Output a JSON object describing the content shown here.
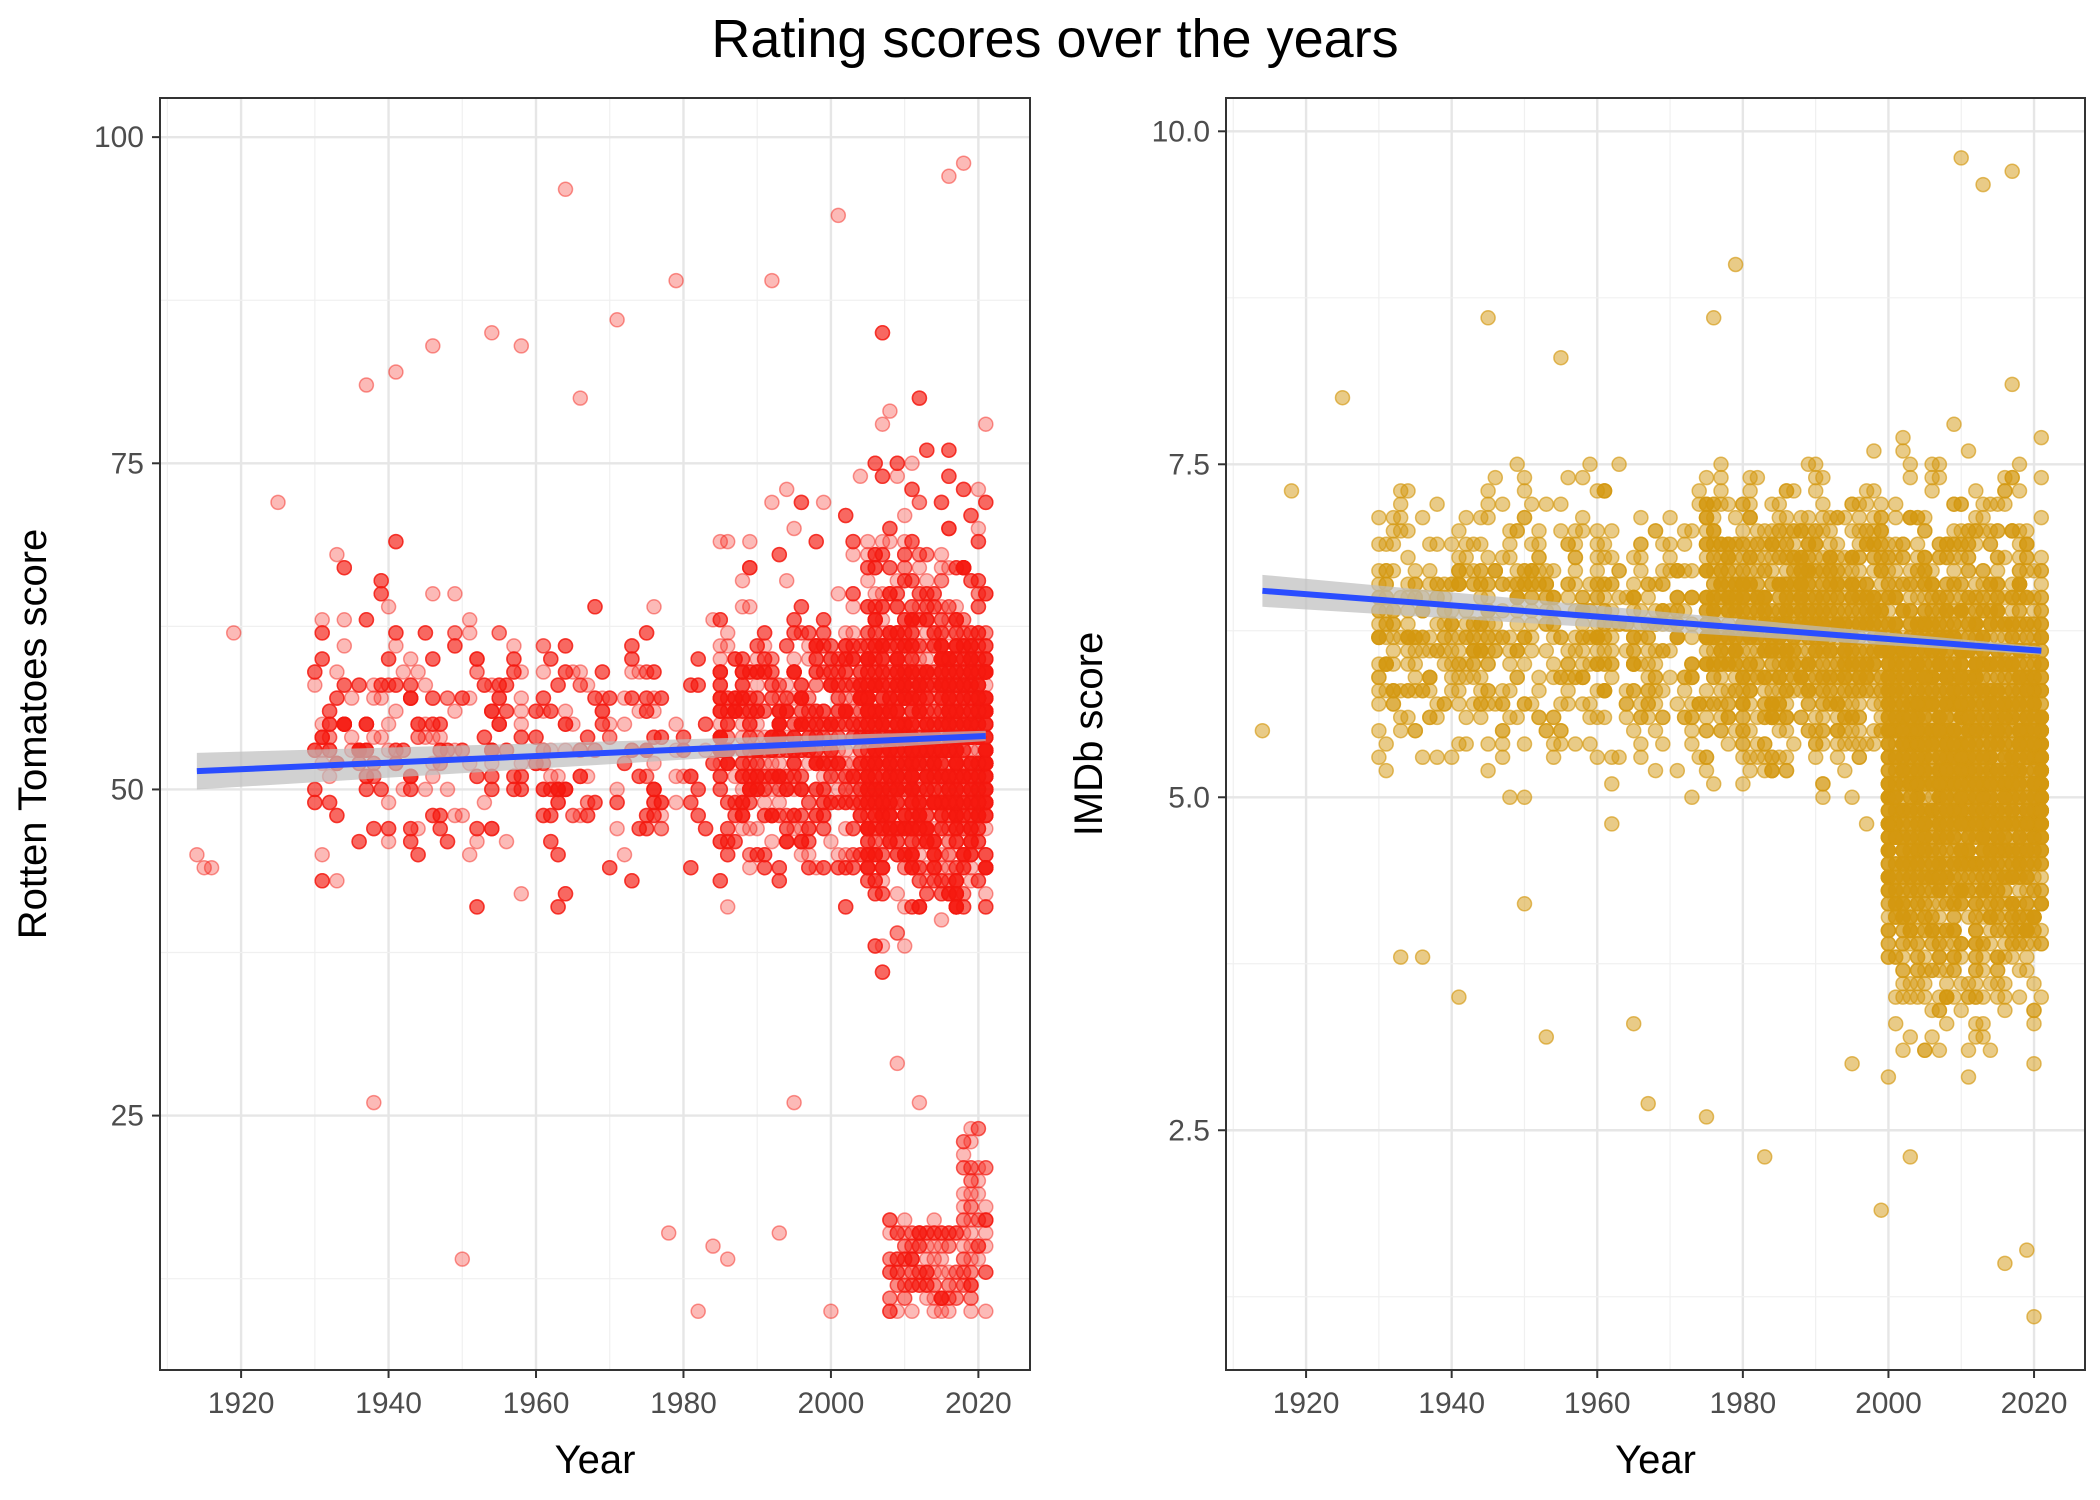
{
  "title": "Rating scores over the years",
  "colors": {
    "background": "#ffffff",
    "panel_border": "#333333",
    "grid_major": "#e6e6e6",
    "grid_minor": "#f0f0f0",
    "trend_line": "#2a4dff",
    "confidence_band": "#bdbdbd",
    "tick_text": "#4d4d4d"
  },
  "chart_data": [
    {
      "type": "scatter",
      "title": "",
      "xlabel": "Year",
      "ylabel": "Rotten Tomatoes score",
      "xlim": [
        1909,
        2027
      ],
      "ylim": [
        5.5,
        103
      ],
      "x_ticks": [
        1920,
        1940,
        1960,
        1980,
        2000,
        2020
      ],
      "x_tick_labels": [
        "1920",
        "1940",
        "1960",
        "1980",
        "2000",
        "2020"
      ],
      "y_ticks": [
        25,
        50,
        75,
        100
      ],
      "y_tick_labels": [
        "25",
        "50",
        "75",
        "100"
      ],
      "grid": true,
      "point_color": "#f4190f",
      "point_opacity": 0.3,
      "points_note_sample": [
        [
          1914,
          45
        ],
        [
          1915,
          44
        ],
        [
          1916,
          44
        ],
        [
          1919,
          62
        ],
        [
          1925,
          72
        ],
        [
          1931,
          45
        ],
        [
          1937,
          81
        ],
        [
          1938,
          26
        ],
        [
          1941,
          82
        ],
        [
          1946,
          84
        ],
        [
          1950,
          14
        ],
        [
          1954,
          85
        ],
        [
          1958,
          84
        ],
        [
          1964,
          96
        ],
        [
          1966,
          80
        ],
        [
          1971,
          86
        ],
        [
          1978,
          16
        ],
        [
          1979,
          89
        ],
        [
          1982,
          10
        ],
        [
          1984,
          15
        ],
        [
          1986,
          14
        ],
        [
          1992,
          89
        ],
        [
          1993,
          16
        ],
        [
          1995,
          26
        ],
        [
          2000,
          10
        ],
        [
          2001,
          94
        ],
        [
          2009,
          29
        ],
        [
          2012,
          26
        ],
        [
          2016,
          97
        ],
        [
          2018,
          98
        ],
        [
          2020,
          24
        ]
      ],
      "trend": {
        "method": "linear",
        "x": [
          1914,
          2021
        ],
        "y": [
          51.4,
          54.1
        ],
        "band_halfwidth": [
          1.4,
          0.4
        ]
      }
    },
    {
      "type": "scatter",
      "title": "",
      "xlabel": "Year",
      "ylabel": "IMDb score",
      "xlim": [
        1909,
        2027
      ],
      "ylim": [
        0.7,
        10.25
      ],
      "x_ticks": [
        1920,
        1940,
        1960,
        1980,
        2000,
        2020
      ],
      "x_tick_labels": [
        "1920",
        "1940",
        "1960",
        "1980",
        "2000",
        "2020"
      ],
      "y_ticks": [
        2.5,
        5.0,
        7.5,
        10.0
      ],
      "y_tick_labels": [
        "2.5",
        "5.0",
        "7.5",
        "10.0"
      ],
      "grid": true,
      "point_color": "#d4980f",
      "point_opacity": 0.5,
      "points_note_sample": [
        [
          1914,
          5.5
        ],
        [
          1918,
          7.3
        ],
        [
          1925,
          8.0
        ],
        [
          1933,
          3.8
        ],
        [
          1936,
          3.8
        ],
        [
          1941,
          3.5
        ],
        [
          1945,
          8.6
        ],
        [
          1950,
          4.2
        ],
        [
          1953,
          3.2
        ],
        [
          1955,
          8.3
        ],
        [
          1965,
          3.3
        ],
        [
          1967,
          2.7
        ],
        [
          1975,
          2.6
        ],
        [
          1976,
          8.6
        ],
        [
          1979,
          9.0
        ],
        [
          1983,
          2.3
        ],
        [
          1995,
          3.0
        ],
        [
          1999,
          1.9
        ],
        [
          2003,
          2.3
        ],
        [
          2010,
          9.8
        ],
        [
          2013,
          9.6
        ],
        [
          2016,
          1.5
        ],
        [
          2017,
          9.7
        ],
        [
          2019,
          1.6
        ],
        [
          2020,
          1.1
        ]
      ],
      "trend": {
        "method": "linear",
        "x": [
          1914,
          2021
        ],
        "y": [
          6.55,
          6.1
        ],
        "band_halfwidth": [
          0.12,
          0.03
        ]
      }
    }
  ]
}
